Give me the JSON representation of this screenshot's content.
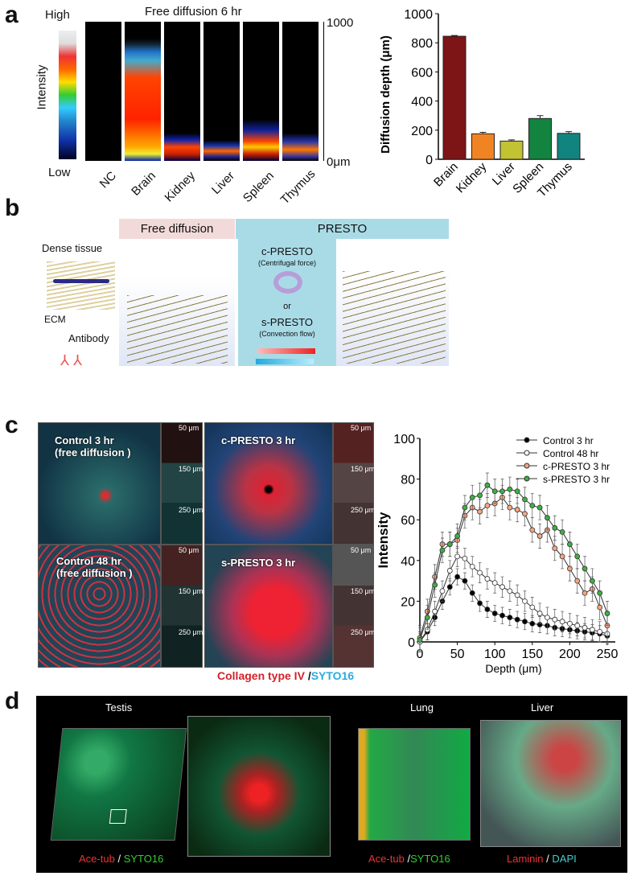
{
  "panels": {
    "a": "a",
    "b": "b",
    "c": "c",
    "d": "d"
  },
  "panel_a": {
    "colorbar": {
      "high": "High",
      "low": "Low",
      "label": "Intensity"
    },
    "title": "Free diffusion 6 hr",
    "depth_top": "1000",
    "depth_bottom": "0μm",
    "samples": [
      "NC",
      "Brain",
      "Kidney",
      "Liver",
      "Spleen",
      "Thymus"
    ]
  },
  "panel_b": {
    "free_header": "Free diffusion",
    "presto_header": "PRESTO",
    "dense_tissue": "Dense  tissue",
    "ecm": "ECM",
    "antibody": "Antibody",
    "c_presto": "c-PRESTO",
    "c_presto_sub": "(Centrifugal force)",
    "or": "or",
    "s_presto": "s-PRESTO",
    "s_presto_sub": "(Convection flow)"
  },
  "panel_c": {
    "images": [
      {
        "label": "Control 3 hr\n(free diffusion )"
      },
      {
        "label": "c-PRESTO 3 hr"
      },
      {
        "label": "Control 48 hr\n(free diffusion )"
      },
      {
        "label": "s-PRESTO 3 hr"
      }
    ],
    "slice_labels": [
      "50 μm",
      "150 μm",
      "250 μm"
    ],
    "stain_red": "Collagen type IV",
    "stain_sep": "/",
    "stain_cyan": "SYTO16"
  },
  "panel_d": {
    "titles": [
      "Testis",
      "Lung",
      "Liver"
    ],
    "legends": [
      {
        "red": "Ace-tub",
        "sep": "/",
        "green": "SYTO16"
      },
      {
        "red": "Ace-tub",
        "sep": "/",
        "green": "SYTO16"
      },
      {
        "red": "Laminin",
        "sep": "/",
        "green": "DAPI"
      }
    ]
  },
  "chart_data": [
    {
      "type": "bar",
      "categories": [
        "Brain",
        "Kidney",
        "Liver",
        "Spleen",
        "Thymus"
      ],
      "values": [
        845,
        175,
        125,
        280,
        178
      ],
      "errors": [
        5,
        10,
        8,
        20,
        12
      ],
      "colors": [
        "#7d1416",
        "#f18422",
        "#c3c232",
        "#13843f",
        "#128480"
      ],
      "ylabel": "Diffusion depth (μm)",
      "ylim": [
        0,
        1000
      ],
      "yticks": [
        0,
        200,
        400,
        600,
        800,
        1000
      ]
    },
    {
      "type": "line",
      "xlabel": "Depth (μm)",
      "ylabel": "Intensity",
      "xlim": [
        0,
        260
      ],
      "ylim": [
        0,
        100
      ],
      "xticks": [
        0,
        50,
        100,
        150,
        200,
        250
      ],
      "yticks": [
        0,
        20,
        40,
        60,
        80,
        100
      ],
      "legend_position": "top-right",
      "x": [
        0,
        10,
        20,
        30,
        40,
        50,
        60,
        70,
        80,
        90,
        100,
        110,
        120,
        130,
        140,
        150,
        160,
        170,
        180,
        190,
        200,
        210,
        220,
        230,
        240,
        250
      ],
      "series": [
        {
          "name": "Control 3 hr",
          "fill": "#000000",
          "err": 4,
          "values": [
            0,
            5,
            12,
            20,
            27,
            32,
            30,
            24,
            19,
            16,
            14,
            13,
            12,
            11,
            10,
            9,
            8.5,
            8,
            7,
            6.5,
            6,
            5.5,
            5,
            4.5,
            4,
            3
          ]
        },
        {
          "name": "Control 48 hr",
          "fill": "#ffffff",
          "err": 5,
          "values": [
            0,
            6,
            15,
            25,
            35,
            42,
            41,
            37,
            34,
            31,
            29,
            27,
            25,
            23,
            20,
            17,
            14,
            12,
            11,
            10,
            9,
            8,
            7,
            6,
            5,
            4
          ]
        },
        {
          "name": "c-PRESTO 3 hr",
          "fill": "#f4a582",
          "err": 6,
          "values": [
            2,
            15,
            32,
            48,
            48,
            50,
            62,
            66,
            64,
            67,
            68,
            71,
            66,
            65,
            63,
            55,
            52,
            55,
            46,
            42,
            36,
            30,
            24,
            26,
            17,
            8
          ]
        },
        {
          "name": "s-PRESTO 3 hr",
          "fill": "#3cb043",
          "err": 6,
          "values": [
            1,
            12,
            28,
            45,
            48,
            52,
            66,
            71,
            72,
            77,
            74,
            74,
            75,
            74,
            70,
            67,
            66,
            61,
            56,
            54,
            48,
            42,
            36,
            30,
            24,
            14
          ]
        }
      ]
    }
  ]
}
